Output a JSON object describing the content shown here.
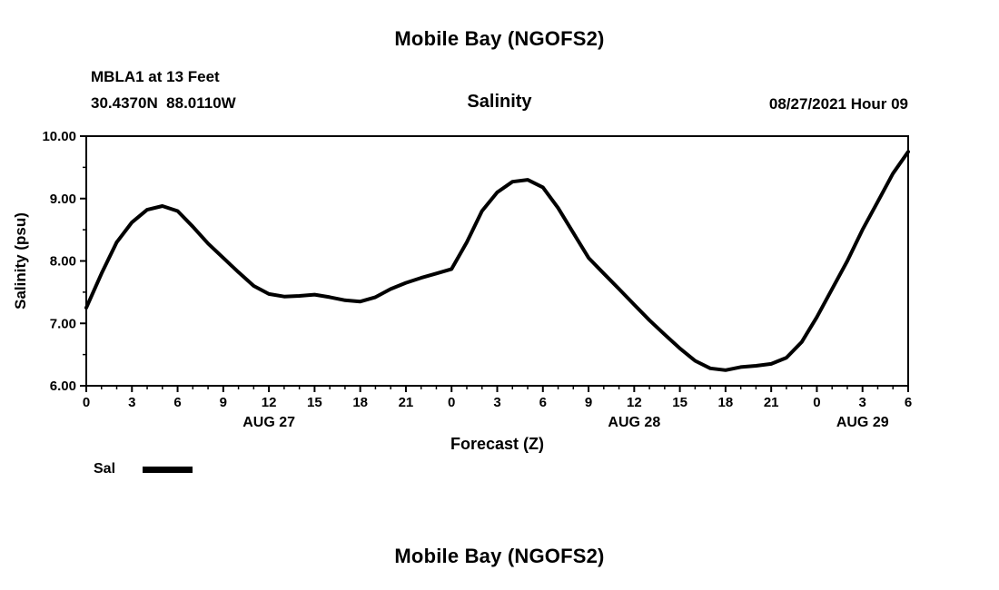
{
  "page": {
    "top_title": "Mobile Bay (NGOFS2)",
    "bottom_title": "Mobile Bay (NGOFS2)"
  },
  "header": {
    "station": "MBLA1 at 13 Feet",
    "coordinates": "30.4370N  88.0110W",
    "plot_title": "Salinity",
    "timestamp": "08/27/2021 Hour 09"
  },
  "legend": {
    "label": "Sal"
  },
  "chart_data": {
    "type": "line",
    "title": "Salinity",
    "xlabel": "Forecast (Z)",
    "ylabel": "Salinity (psu)",
    "xlim": [
      0,
      54
    ],
    "ylim": [
      6,
      10
    ],
    "grid": false,
    "legend_position": "bottom-left",
    "y_ticks": [
      6,
      7,
      8,
      9,
      10
    ],
    "y_tick_labels": [
      "6.00",
      "7.00",
      "8.00",
      "9.00",
      "10.00"
    ],
    "x_ticks": [
      0,
      3,
      6,
      9,
      12,
      15,
      18,
      21,
      24,
      27,
      30,
      33,
      36,
      39,
      42,
      45,
      48,
      51,
      54
    ],
    "x_tick_labels": [
      "0",
      "3",
      "6",
      "9",
      "12",
      "15",
      "18",
      "21",
      "0",
      "3",
      "6",
      "9",
      "12",
      "15",
      "18",
      "21",
      "0",
      "3",
      "6"
    ],
    "day_labels": [
      {
        "label": "AUG 27",
        "x": 12
      },
      {
        "label": "AUG 28",
        "x": 36
      },
      {
        "label": "AUG 29",
        "x": 51
      }
    ],
    "series": [
      {
        "name": "Sal",
        "color": "#000000",
        "x": [
          0,
          1,
          2,
          3,
          4,
          5,
          6,
          7,
          8,
          9,
          10,
          11,
          12,
          13,
          14,
          15,
          16,
          17,
          18,
          19,
          20,
          21,
          22,
          23,
          24,
          25,
          26,
          27,
          28,
          29,
          30,
          31,
          32,
          33,
          34,
          35,
          36,
          37,
          38,
          39,
          40,
          41,
          42,
          43,
          44,
          45,
          46,
          47,
          48,
          49,
          50,
          51,
          52,
          53,
          54
        ],
        "y": [
          7.25,
          7.8,
          8.3,
          8.62,
          8.82,
          8.88,
          8.8,
          8.55,
          8.28,
          8.05,
          7.82,
          7.6,
          7.47,
          7.43,
          7.44,
          7.46,
          7.42,
          7.37,
          7.35,
          7.42,
          7.55,
          7.65,
          7.73,
          7.8,
          7.87,
          8.3,
          8.8,
          9.1,
          9.27,
          9.3,
          9.18,
          8.85,
          8.45,
          8.05,
          7.8,
          7.55,
          7.3,
          7.05,
          6.82,
          6.6,
          6.4,
          6.28,
          6.25,
          6.3,
          6.32,
          6.35,
          6.45,
          6.7,
          7.1,
          7.55,
          8.0,
          8.5,
          8.95,
          9.4,
          9.75
        ]
      }
    ]
  }
}
